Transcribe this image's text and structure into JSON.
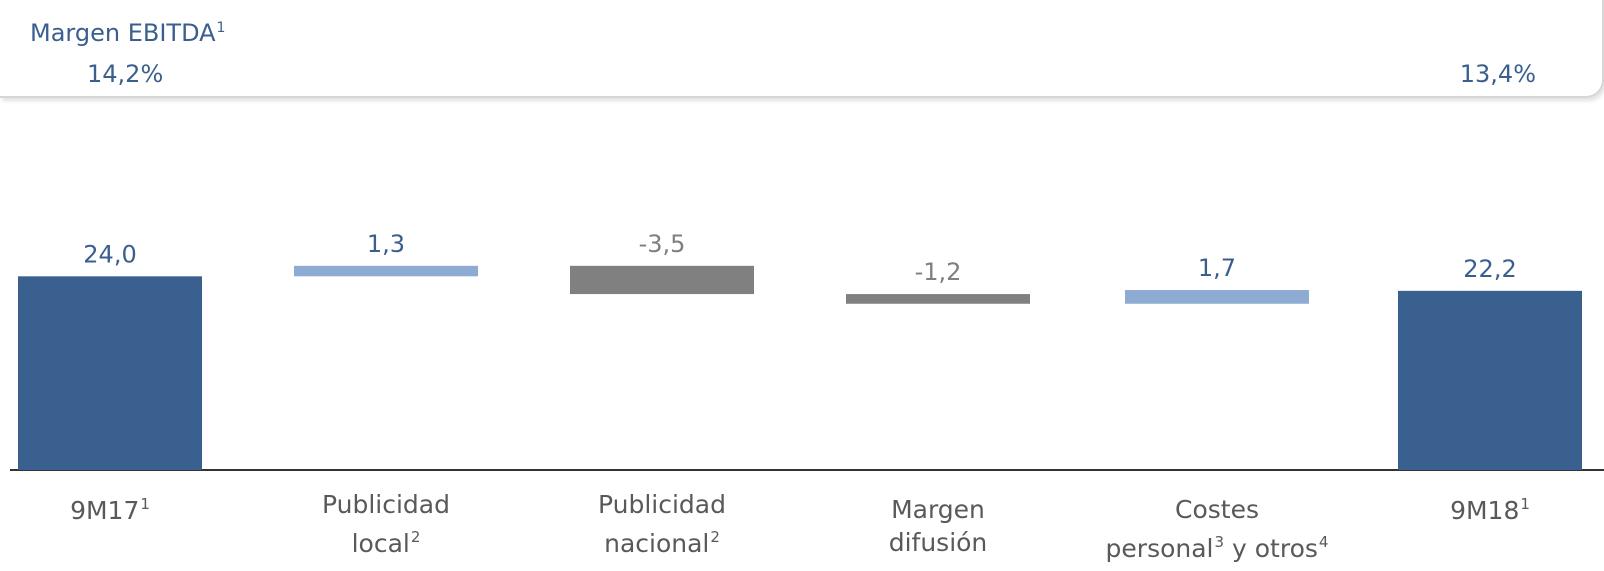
{
  "header": {
    "title": "Margen EBITDA",
    "title_sup": "1",
    "start_value": "14,2%",
    "end_value": "13,4%"
  },
  "colors": {
    "total": "#3a6090",
    "increase": "#8eabd4",
    "decrease": "#808080",
    "label_blue": "#3a5f8f",
    "label_gray": "#7f7f7f",
    "category_text": "#595959",
    "axis": "#333333"
  },
  "chart_data": {
    "type": "bar",
    "subtype": "waterfall",
    "categories": [
      {
        "name": "9M17",
        "sup": "1",
        "lines": [
          "9M17"
        ]
      },
      {
        "name": "Publicidad local",
        "sup": "2",
        "lines": [
          "Publicidad",
          "local"
        ]
      },
      {
        "name": "Publicidad nacional",
        "sup": "2",
        "lines": [
          "Publicidad",
          "nacional"
        ]
      },
      {
        "name": "Margen difusión",
        "sup": "",
        "lines": [
          "Margen",
          "difusión"
        ]
      },
      {
        "name": "Costes personal y otros",
        "sup": "",
        "lines": [
          "Costes",
          "personal"
        ]
      },
      {
        "name": "9M18",
        "sup": "1",
        "lines": [
          "9M18"
        ]
      }
    ],
    "values": [
      24.0,
      1.3,
      -3.5,
      -1.2,
      1.7,
      22.2
    ],
    "value_labels": [
      "24,0",
      "1,3",
      "-3,5",
      "-1,2",
      "1,7",
      "22,2"
    ],
    "kinds": [
      "total",
      "increase",
      "decrease",
      "decrease",
      "increase",
      "total"
    ],
    "title": "",
    "xlabel": "",
    "ylabel": "",
    "ylim": [
      0,
      26
    ],
    "grid": false,
    "legend": "none"
  }
}
